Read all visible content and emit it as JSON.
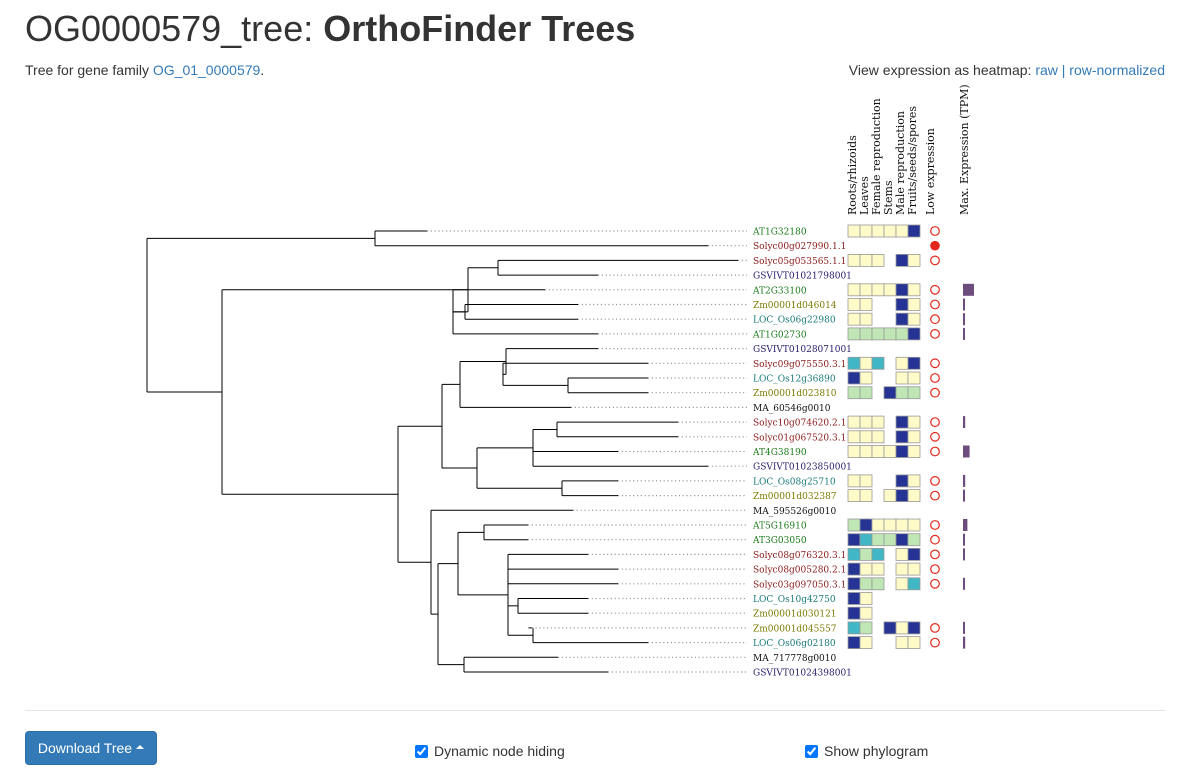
{
  "header": {
    "title_main": "OG0000579_tree: ",
    "title_bold": "OrthoFinder Trees",
    "subtitle_prefix": "Tree for gene family ",
    "family_link": "OG_01_0000579",
    "subtitle_suffix": ".",
    "heatmap_label": "View expression as heatmap: ",
    "raw_link": "raw",
    "separator": " | ",
    "rownorm_link": "row-normalized"
  },
  "columns": [
    "Roots/rhizoids",
    "Leaves",
    "Female reproduction",
    "Stems",
    "Male reproduction",
    "Fruits/seeds/spores",
    "Low expression",
    "Max. Expression (TPM)"
  ],
  "colors": {
    "species": {
      "ath": "#1a7a1a",
      "sly": "#8b1a1a",
      "vvi": "#2a1a6b",
      "zma": "#7a7a00",
      "osa": "#1a7a7a",
      "ama": "#111111"
    },
    "heat": {
      "e": "#fffbc8",
      "l": "#bfe6b4",
      "t": "#41b6c4",
      "d": "#253494"
    },
    "low_expression": "#e3281b",
    "max_bar": "#6d4c7e",
    "branch": "#000000",
    "dotted": "#999999"
  },
  "genes": [
    {
      "name": "AT1G32180",
      "sp": "ath",
      "cells": [
        "e",
        "e",
        "e",
        "e",
        "e",
        "d"
      ],
      "low": "open",
      "max": null
    },
    {
      "name": "Solyc00g027990.1.1",
      "sp": "sly",
      "cells": [
        "",
        "",
        "",
        "",
        "",
        ""
      ],
      "low": "filled",
      "max": null
    },
    {
      "name": "Solyc05g053565.1.1",
      "sp": "sly",
      "cells": [
        "e",
        "e",
        "e",
        "",
        "d",
        "e"
      ],
      "low": "open",
      "max": null
    },
    {
      "name": "GSVIVT01021798001",
      "sp": "vvi",
      "cells": [
        "",
        "",
        "",
        "",
        "",
        ""
      ],
      "low": "none",
      "max": null
    },
    {
      "name": "AT2G33100",
      "sp": "ath",
      "cells": [
        "e",
        "e",
        "e",
        "e",
        "d",
        "e"
      ],
      "low": "open",
      "max": 1.0
    },
    {
      "name": "Zm00001d046014",
      "sp": "zma",
      "cells": [
        "e",
        "e",
        "",
        "",
        "d",
        "e"
      ],
      "low": "open",
      "max": 0.1
    },
    {
      "name": "LOC_Os06g22980",
      "sp": "osa",
      "cells": [
        "e",
        "e",
        "",
        "",
        "d",
        "e"
      ],
      "low": "open",
      "max": 0.1
    },
    {
      "name": "AT1G02730",
      "sp": "ath",
      "cells": [
        "l",
        "l",
        "l",
        "l",
        "l",
        "d"
      ],
      "low": "open",
      "max": 0.1
    },
    {
      "name": "GSVIVT01028071001",
      "sp": "vvi",
      "cells": [
        "",
        "",
        "",
        "",
        "",
        ""
      ],
      "low": "none",
      "max": null
    },
    {
      "name": "Solyc09g075550.3.1",
      "sp": "sly",
      "cells": [
        "t",
        "e",
        "t",
        "",
        "e",
        "d"
      ],
      "low": "open",
      "max": null
    },
    {
      "name": "LOC_Os12g36890",
      "sp": "osa",
      "cells": [
        "d",
        "e",
        "",
        "",
        "e",
        "e"
      ],
      "low": "open",
      "max": null
    },
    {
      "name": "Zm00001d023810",
      "sp": "zma",
      "cells": [
        "l",
        "l",
        "",
        "d",
        "l",
        "l"
      ],
      "low": "open",
      "max": null
    },
    {
      "name": "MA_60546g0010",
      "sp": "ama",
      "cells": [
        "",
        "",
        "",
        "",
        "",
        ""
      ],
      "low": "none",
      "max": null
    },
    {
      "name": "Solyc10g074620.2.1",
      "sp": "sly",
      "cells": [
        "e",
        "e",
        "e",
        "",
        "d",
        "e"
      ],
      "low": "open",
      "max": 0.2
    },
    {
      "name": "Solyc01g067520.3.1",
      "sp": "sly",
      "cells": [
        "e",
        "e",
        "e",
        "",
        "d",
        "e"
      ],
      "low": "open",
      "max": null
    },
    {
      "name": "AT4G38190",
      "sp": "ath",
      "cells": [
        "e",
        "e",
        "e",
        "e",
        "d",
        "e"
      ],
      "low": "open",
      "max": 0.6
    },
    {
      "name": "GSVIVT01023850001",
      "sp": "vvi",
      "cells": [
        "",
        "",
        "",
        "",
        "",
        ""
      ],
      "low": "none",
      "max": null
    },
    {
      "name": "LOC_Os08g25710",
      "sp": "osa",
      "cells": [
        "e",
        "e",
        "",
        "",
        "d",
        "e"
      ],
      "low": "open",
      "max": 0.2
    },
    {
      "name": "Zm00001d032387",
      "sp": "zma",
      "cells": [
        "e",
        "e",
        "",
        "e",
        "d",
        "e"
      ],
      "low": "open",
      "max": 0.1
    },
    {
      "name": "MA_595526g0010",
      "sp": "ama",
      "cells": [
        "",
        "",
        "",
        "",
        "",
        ""
      ],
      "low": "none",
      "max": null
    },
    {
      "name": "AT5G16910",
      "sp": "ath",
      "cells": [
        "l",
        "d",
        "e",
        "e",
        "e",
        "e"
      ],
      "low": "open",
      "max": 0.4
    },
    {
      "name": "AT3G03050",
      "sp": "ath",
      "cells": [
        "d",
        "t",
        "l",
        "l",
        "d",
        "l"
      ],
      "low": "open",
      "max": 0.1
    },
    {
      "name": "Solyc08g076320.3.1",
      "sp": "sly",
      "cells": [
        "t",
        "l",
        "t",
        "",
        "e",
        "d"
      ],
      "low": "open",
      "max": 0.1
    },
    {
      "name": "Solyc08g005280.2.1",
      "sp": "sly",
      "cells": [
        "d",
        "e",
        "e",
        "",
        "e",
        "e"
      ],
      "low": "open",
      "max": null
    },
    {
      "name": "Solyc03g097050.3.1",
      "sp": "sly",
      "cells": [
        "d",
        "l",
        "l",
        "",
        "e",
        "t"
      ],
      "low": "open",
      "max": 0.1
    },
    {
      "name": "LOC_Os10g42750",
      "sp": "osa",
      "cells": [
        "d",
        "e",
        "",
        "",
        "",
        ""
      ],
      "low": "none",
      "max": null
    },
    {
      "name": "Zm00001d030121",
      "sp": "zma",
      "cells": [
        "d",
        "e",
        "",
        "",
        "",
        ""
      ],
      "low": "none",
      "max": null
    },
    {
      "name": "Zm00001d045557",
      "sp": "zma",
      "cells": [
        "t",
        "l",
        "",
        "d",
        "e",
        "d"
      ],
      "low": "open",
      "max": 0.1
    },
    {
      "name": "LOC_Os06g02180",
      "sp": "osa",
      "cells": [
        "d",
        "e",
        "",
        "",
        "e",
        "e"
      ],
      "low": "open",
      "max": 0.2
    },
    {
      "name": "MA_717778g0010",
      "sp": "ama",
      "cells": [
        "",
        "",
        "",
        "",
        "",
        ""
      ],
      "low": "none",
      "max": null
    },
    {
      "name": "GSVIVT01024398001",
      "sp": "vvi",
      "cells": [
        "",
        "",
        "",
        "",
        "",
        ""
      ],
      "low": "none",
      "max": null
    }
  ],
  "controls": {
    "download_label": "Download Tree",
    "dynamic_label": "Dynamic node hiding",
    "dynamic_checked": true,
    "phylogram_label": "Show phylogram",
    "phylogram_checked": true
  }
}
